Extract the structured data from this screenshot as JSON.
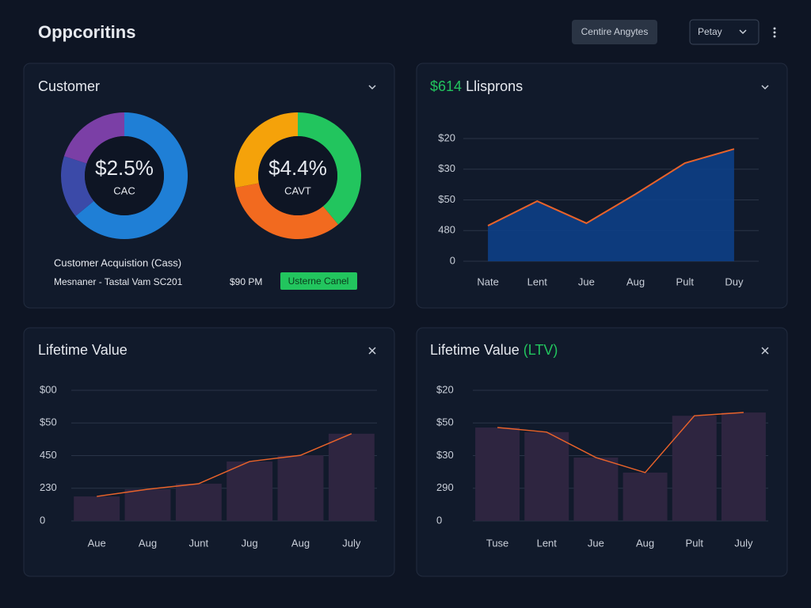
{
  "header": {
    "title": "Oppcoritins",
    "button": "Centire Angytes",
    "select": "Petay"
  },
  "customer_panel": {
    "title": "Customer",
    "legend_title": "Customer Acquistion (Cass)",
    "legend_row": "Mesnaner - Tastal Vam SC201",
    "legend_amount": "$90 PM",
    "badge": "Usterne Canel"
  },
  "chart_data": [
    {
      "type": "pie",
      "center_text": "$2.5%",
      "label": "CAC",
      "values": [
        64,
        16,
        20
      ],
      "colors": [
        "#1f7fd6",
        "#3b4aa8",
        "#7b3fa6"
      ]
    },
    {
      "type": "pie",
      "center_text": "$4.4%",
      "label": "CAVT",
      "values": [
        39,
        33,
        28
      ],
      "colors": [
        "#22c55e",
        "#f26a1f",
        "#f5a20a"
      ]
    },
    {
      "type": "area",
      "title_highlight": "$614",
      "title": "Llisprons",
      "categories": [
        "Nate",
        "Lent",
        "Jue",
        "Aug",
        "Pult",
        "Duy"
      ],
      "values": [
        1.16,
        1.96,
        1.24,
        2.19,
        3.2,
        3.66
      ],
      "color": "#0d3f86",
      "line_color": "#e8622a",
      "ylim": [
        0,
        4
      ],
      "yticks": [
        {
          "value": 0,
          "label": "0"
        },
        {
          "value": 1,
          "label": "480"
        },
        {
          "value": 2,
          "label": "$50"
        },
        {
          "value": 3,
          "label": "$30"
        },
        {
          "value": 4,
          "label": "$20"
        }
      ],
      "grid": true
    },
    {
      "type": "bar",
      "title": "Lifetime Value",
      "categories": [
        "Aue",
        "Aug",
        "Junt",
        "Jug",
        "Aug",
        "July"
      ],
      "values": [
        0.75,
        0.97,
        1.14,
        1.82,
        2.01,
        2.67
      ],
      "color": "#2e2540",
      "line_color": "#e8622a",
      "ylim": [
        0,
        4
      ],
      "yticks": [
        {
          "value": 0,
          "label": "0"
        },
        {
          "value": 1,
          "label": "230"
        },
        {
          "value": 2,
          "label": "450"
        },
        {
          "value": 3,
          "label": "$50"
        },
        {
          "value": 4,
          "label": "$00"
        }
      ],
      "grid": true
    },
    {
      "type": "bar",
      "title": "Lifetime Value",
      "title_highlight": "(LTV)",
      "categories": [
        "Tuse",
        "Lent",
        "Jue",
        "Aug",
        "Pult",
        "July"
      ],
      "values": [
        2.86,
        2.72,
        1.94,
        1.48,
        3.22,
        3.32
      ],
      "color": "#2e2540",
      "line_color": "#e8622a",
      "ylim": [
        0,
        4
      ],
      "yticks": [
        {
          "value": 0,
          "label": "0"
        },
        {
          "value": 1,
          "label": "290"
        },
        {
          "value": 2,
          "label": "$30"
        },
        {
          "value": 3,
          "label": "$50"
        },
        {
          "value": 4,
          "label": "$20"
        }
      ],
      "grid": true
    }
  ]
}
